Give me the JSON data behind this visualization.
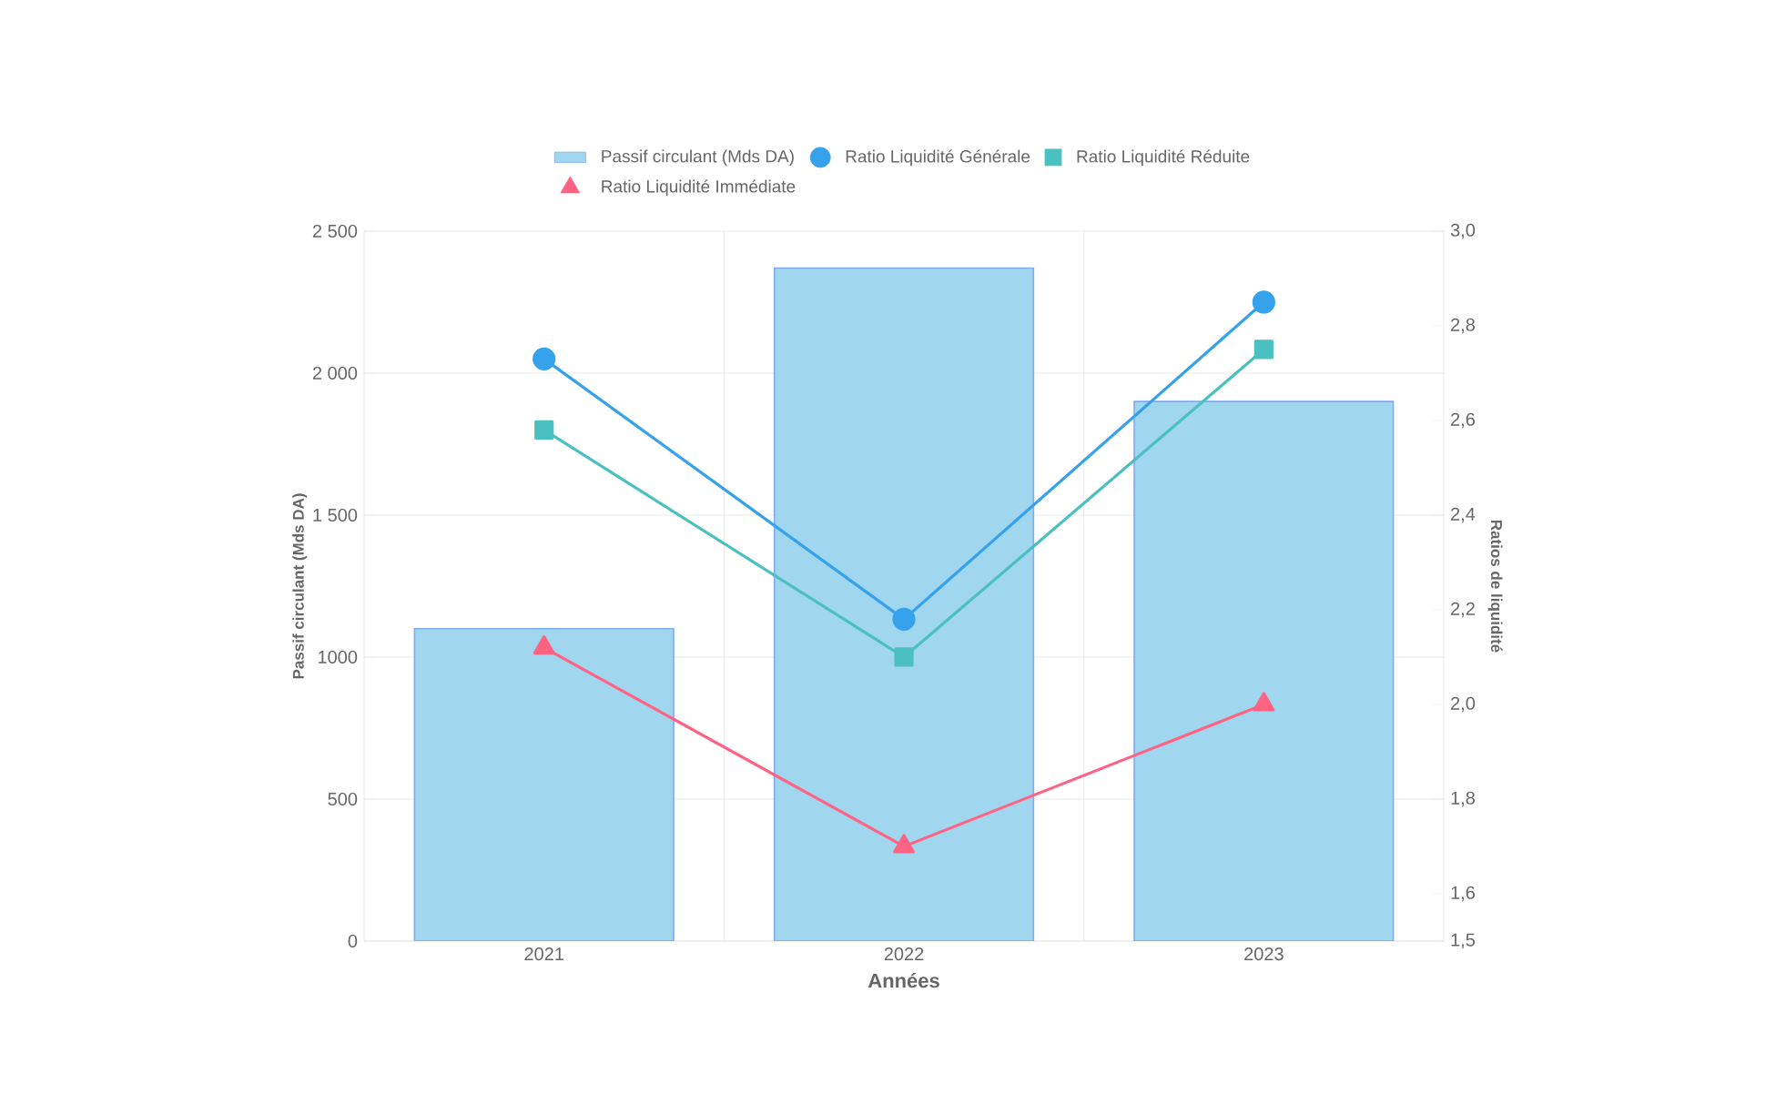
{
  "chart_data": {
    "type": "bar",
    "categories": [
      "2021",
      "2022",
      "2023"
    ],
    "xlabel": "Années",
    "ylabel": "Passif circulant (Mds DA)",
    "y2label": "Ratios de liquidité",
    "series": [
      {
        "name": "Passif circulant (Mds DA)",
        "color": "#a0d6ee",
        "values": [
          1100,
          2370,
          1900
        ]
      },
      {
        "name": "Ratio Liquidité Générale",
        "type": "line",
        "axis": "y2",
        "marker": "circle",
        "color": "#36a2eb",
        "values": [
          2.73,
          2.18,
          2.85
        ]
      },
      {
        "name": "Ratio Liquidité Réduite",
        "type": "line",
        "axis": "y2",
        "marker": "square",
        "color": "#4bc0c0",
        "values": [
          2.58,
          2.1,
          2.75
        ]
      },
      {
        "name": "Ratio Liquidité Immédiate",
        "type": "line",
        "axis": "y2",
        "marker": "triangle",
        "color": "#ff6384",
        "values": [
          2.12,
          1.7,
          2.0
        ]
      }
    ],
    "ylim": [
      0,
      2500
    ],
    "yticks": [
      0,
      500,
      {
        "value": 1000,
        "label": "1000"
      },
      {
        "value": 1500,
        "label": "1 500"
      },
      {
        "value": 2000,
        "label": "2 000"
      },
      {
        "value": 2500,
        "label": "2 500"
      }
    ],
    "y2lim": [
      1.5,
      3.0
    ],
    "y2ticks": [
      {
        "value": 1.5,
        "label": "1,5"
      },
      {
        "value": 1.6,
        "label": "1,6"
      },
      {
        "value": 1.8,
        "label": "1,8"
      },
      {
        "value": 2.0,
        "label": "2,0"
      },
      {
        "value": 2.2,
        "label": "2,2"
      },
      {
        "value": 2.4,
        "label": "2,4"
      },
      {
        "value": 2.6,
        "label": "2,6"
      },
      {
        "value": 2.8,
        "label": "2,8"
      },
      {
        "value": 3.0,
        "label": "3,0"
      }
    ],
    "grid": true,
    "legend": "top"
  }
}
